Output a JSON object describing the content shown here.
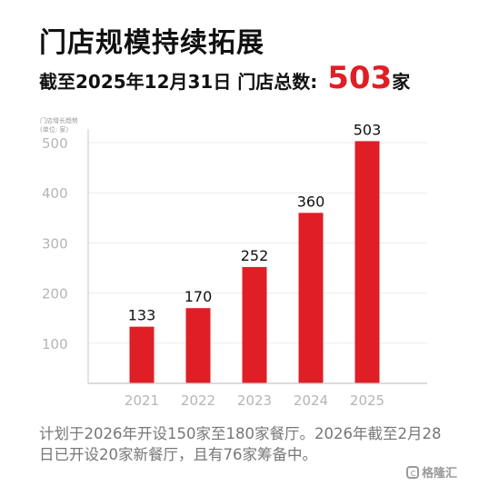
{
  "header": {
    "title": "门店规模持续拓展",
    "subtitle_prefix": "截至2025年12月31日  门店总数: ",
    "total_value": "503",
    "total_unit": "家"
  },
  "chart_caption": {
    "line1": "门店增长趋势",
    "line2": "(单位: 家)"
  },
  "chart_data": {
    "type": "bar",
    "categories": [
      "2021",
      "2022",
      "2023",
      "2024",
      "2025"
    ],
    "values": [
      133,
      170,
      252,
      360,
      503
    ],
    "value_labels": [
      "133",
      "170",
      "252",
      "360",
      "503"
    ],
    "title": "门店增长趋势",
    "ylabel": "(单位: 家)",
    "y_ticks": [
      100,
      200,
      300,
      400,
      500
    ],
    "y_tick_labels": [
      "100",
      "200",
      "300",
      "400",
      "500"
    ],
    "ylim": [
      20,
      520
    ],
    "grid": true,
    "colors": {
      "bar": "#e01e26",
      "grid": "#ebebeb",
      "axis": "#c7c7c7",
      "tick_label": "#b5b5b5"
    }
  },
  "footnote": "计划于2026年开设150家至180家餐厅。2026年截至2月28日已开设20家新餐厅，且有76家筹备中。",
  "watermark": {
    "text": "格隆汇",
    "icon": "gelonghui-logo-icon"
  }
}
